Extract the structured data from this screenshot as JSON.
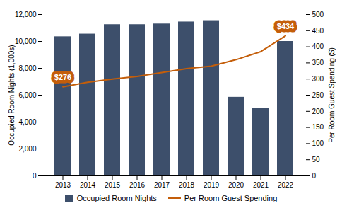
{
  "chart_data": {
    "type": "bar",
    "categories": [
      "2013",
      "2014",
      "2015",
      "2016",
      "2017",
      "2018",
      "2019",
      "2020",
      "2021",
      "2022"
    ],
    "series": [
      {
        "name": "Occupied Room Nights",
        "type": "bar",
        "color": "#3d4f6b",
        "values": [
          10350,
          10550,
          11250,
          11250,
          11300,
          11450,
          11550,
          5850,
          5000,
          10000
        ]
      },
      {
        "name": "Per Room Guest Spending",
        "type": "line",
        "color": "#c45e0a",
        "axis": "y2",
        "values": [
          276,
          290,
          300,
          308,
          320,
          332,
          340,
          360,
          385,
          434
        ]
      }
    ],
    "ylabel": "Occupied Room Nights (1,000s)",
    "y2label": "Per Room Guest Spending ($)",
    "ylim": [
      0,
      12000
    ],
    "yticks": [
      0,
      {
        "value": 2000,
        "label": "2,000"
      },
      {
        "value": 4000,
        "label": "4,000"
      },
      {
        "value": 6000,
        "label": "6,000"
      },
      {
        "value": 8000,
        "label": "8,000"
      },
      {
        "value": 10000,
        "label": "10,000"
      },
      {
        "value": 12000,
        "label": "12,000"
      }
    ],
    "y2lim": [
      0,
      500
    ],
    "y2ticks": [
      0,
      50,
      100,
      150,
      200,
      250,
      300,
      350,
      400,
      450,
      500
    ],
    "annotations": [
      {
        "text": "$276",
        "x": "2013",
        "y": 276,
        "axis": "y2"
      },
      {
        "text": "$434",
        "x": "2022",
        "y": 434,
        "axis": "y2"
      }
    ],
    "legend": "bottom",
    "grid": false
  }
}
